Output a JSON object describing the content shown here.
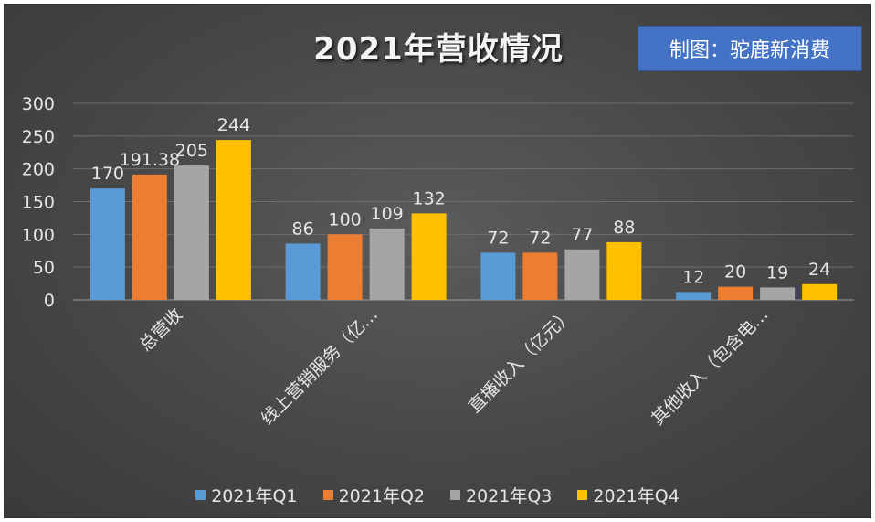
{
  "chart_data": {
    "type": "bar",
    "title": "2021年营收情况",
    "credit": "制图：驼鹿新消费",
    "categories": [
      "总营收",
      "线上营销服务（亿…",
      "直播收入（亿元）",
      "其他收入（包含电…"
    ],
    "series": [
      {
        "name": "2021年Q1",
        "values": [
          170,
          86,
          72,
          12
        ],
        "labels": [
          "170",
          "86",
          "72",
          "12"
        ],
        "color": "#5b9bd5"
      },
      {
        "name": "2021年Q2",
        "values": [
          191.38,
          100,
          72,
          20
        ],
        "labels": [
          "191.38",
          "100",
          "72",
          "20"
        ],
        "color": "#ed7d31"
      },
      {
        "name": "2021年Q3",
        "values": [
          205,
          109,
          77,
          19
        ],
        "labels": [
          "205",
          "109",
          "77",
          "19"
        ],
        "color": "#a5a5a5"
      },
      {
        "name": "2021年Q4",
        "values": [
          244,
          132,
          88,
          24
        ],
        "labels": [
          "244",
          "132",
          "88",
          "24"
        ],
        "color": "#ffc000"
      }
    ],
    "ylim": [
      0,
      300
    ],
    "yticks": [
      "0",
      "50",
      "100",
      "150",
      "200",
      "250",
      "300"
    ],
    "ytick_values": [
      0,
      50,
      100,
      150,
      200,
      250,
      300
    ],
    "grid": true,
    "legend": "bottom"
  }
}
